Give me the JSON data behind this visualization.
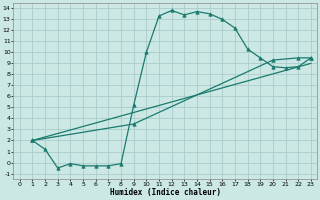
{
  "background_color": "#cce8e4",
  "grid_color": "#aacccc",
  "line_color": "#1a7a6e",
  "xlabel": "Humidex (Indice chaleur)",
  "xlim": [
    -0.5,
    23.5
  ],
  "ylim": [
    -1.5,
    14.5
  ],
  "xticks": [
    0,
    1,
    2,
    3,
    4,
    5,
    6,
    7,
    8,
    9,
    10,
    11,
    12,
    13,
    14,
    15,
    16,
    17,
    18,
    19,
    20,
    21,
    22,
    23
  ],
  "yticks": [
    -1,
    0,
    1,
    2,
    3,
    4,
    5,
    6,
    7,
    8,
    9,
    10,
    11,
    12,
    13,
    14
  ],
  "curve1_x": [
    1,
    2,
    3,
    4,
    5,
    6,
    7,
    8,
    9,
    10,
    11,
    12,
    13,
    14,
    15,
    16,
    17,
    18,
    19,
    20,
    21,
    22,
    23
  ],
  "curve1_y": [
    2.0,
    1.2,
    -0.5,
    -0.1,
    -0.3,
    -0.3,
    -0.3,
    -0.1,
    5.2,
    10.0,
    13.3,
    13.8,
    13.4,
    13.7,
    13.5,
    13.0,
    12.2,
    10.3,
    9.5,
    8.7,
    8.6,
    8.7,
    9.5
  ],
  "curve2_x": [
    1,
    9,
    20,
    22,
    23
  ],
  "curve2_y": [
    2.0,
    3.5,
    9.3,
    9.5,
    9.5
  ],
  "curve3_x": [
    1,
    23
  ],
  "curve3_y": [
    2.0,
    9.0
  ],
  "marker": "^",
  "markersize": 2.5,
  "linewidth": 0.9
}
